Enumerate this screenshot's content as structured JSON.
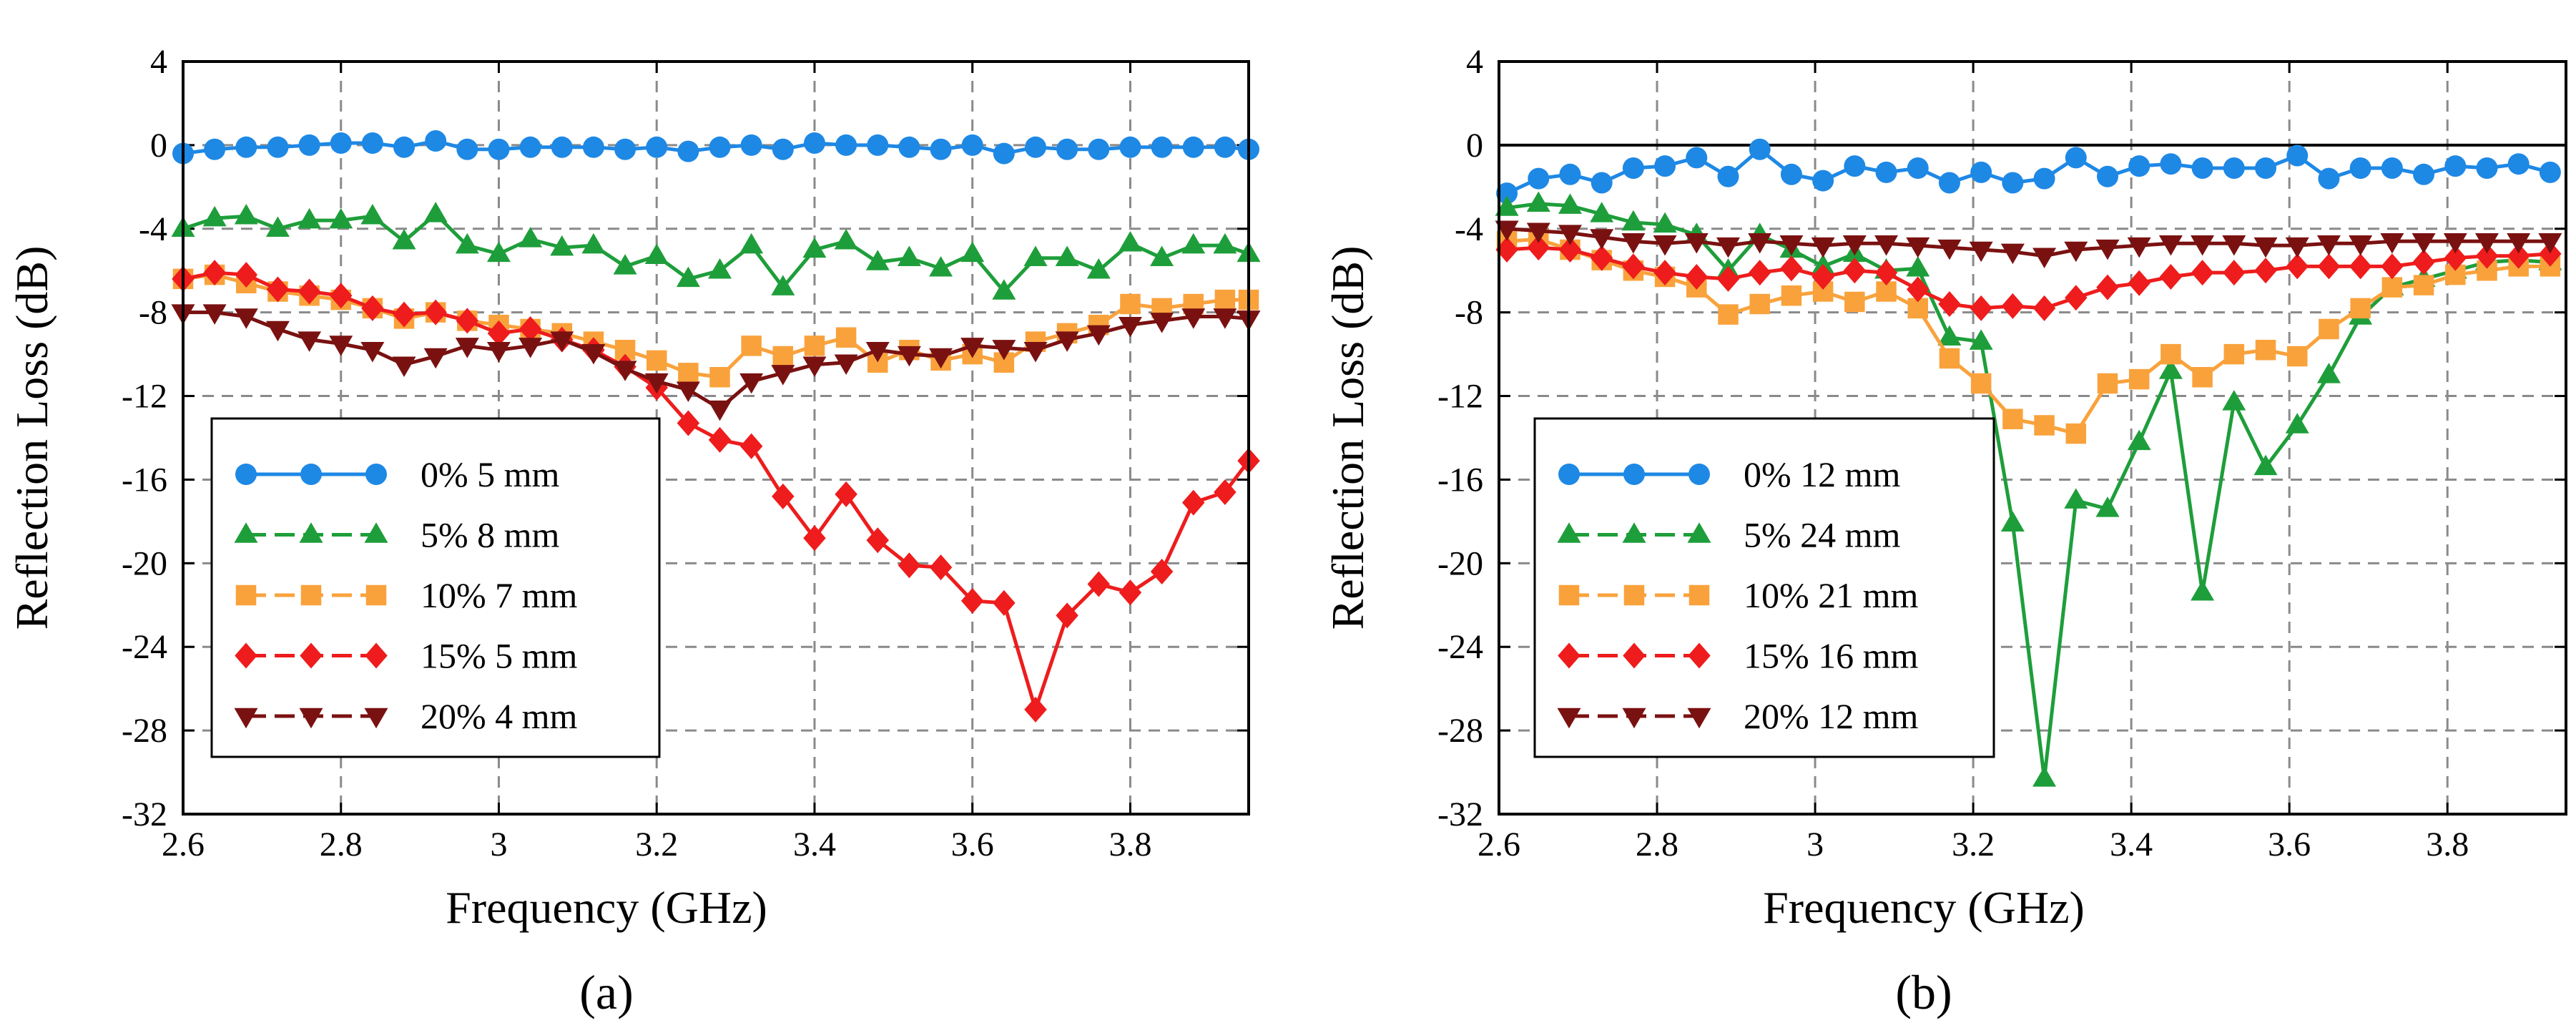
{
  "chart_data": [
    {
      "type": "line",
      "panel_label": "(a)",
      "xlabel": "Frequency (GHz)",
      "ylabel": "Reflection Loss (dB)",
      "xlim": [
        2.6,
        3.95
      ],
      "ylim": [
        -32,
        4
      ],
      "xticks": [
        2.6,
        2.8,
        3.0,
        3.2,
        3.4,
        3.6,
        3.8
      ],
      "xtick_labels": [
        "2.6",
        "2.8",
        "3",
        "3.2",
        "3.4",
        "3.6",
        "3.8"
      ],
      "yticks": [
        4,
        0,
        -4,
        -8,
        -12,
        -16,
        -20,
        -24,
        -28,
        -32
      ],
      "ytick_labels": [
        "4",
        "0",
        "-4",
        "-8",
        "-12",
        "-16",
        "-20",
        "-24",
        "-28",
        "-32"
      ],
      "grid": true,
      "legend_position": "lower-left",
      "x": [
        2.6,
        2.64,
        2.68,
        2.72,
        2.76,
        2.8,
        2.84,
        2.88,
        2.92,
        2.96,
        3.0,
        3.04,
        3.08,
        3.12,
        3.16,
        3.2,
        3.24,
        3.28,
        3.32,
        3.36,
        3.4,
        3.44,
        3.48,
        3.52,
        3.56,
        3.6,
        3.64,
        3.68,
        3.72,
        3.76,
        3.8,
        3.84,
        3.88,
        3.92,
        3.95
      ],
      "series": [
        {
          "name": "0% 5 mm",
          "color": "#1E88E5",
          "marker": "circle",
          "values": [
            -0.4,
            -0.2,
            -0.1,
            -0.1,
            0.0,
            0.1,
            0.1,
            -0.1,
            0.2,
            -0.2,
            -0.2,
            -0.1,
            -0.1,
            -0.1,
            -0.2,
            -0.1,
            -0.3,
            -0.1,
            0.0,
            -0.2,
            0.1,
            0.0,
            0.0,
            -0.1,
            -0.2,
            0.0,
            -0.4,
            -0.1,
            -0.2,
            -0.2,
            -0.1,
            -0.1,
            -0.1,
            -0.1,
            -0.2
          ]
        },
        {
          "name": "5% 8 mm",
          "color": "#1E9E3A",
          "marker": "triangle-up",
          "values": [
            -4.0,
            -3.5,
            -3.4,
            -4.0,
            -3.6,
            -3.6,
            -3.4,
            -4.6,
            -3.3,
            -4.8,
            -5.2,
            -4.5,
            -4.9,
            -4.8,
            -5.8,
            -5.3,
            -6.4,
            -6.0,
            -4.8,
            -6.8,
            -5.0,
            -4.6,
            -5.6,
            -5.4,
            -5.9,
            -5.2,
            -7.0,
            -5.4,
            -5.4,
            -6.0,
            -4.7,
            -5.4,
            -4.8,
            -4.8,
            -5.2
          ]
        },
        {
          "name": "10% 7 mm",
          "color": "#F9A23C",
          "marker": "square",
          "values": [
            -6.4,
            -6.2,
            -6.6,
            -7.0,
            -7.2,
            -7.4,
            -7.8,
            -8.3,
            -8.0,
            -8.4,
            -8.6,
            -8.8,
            -9.0,
            -9.4,
            -9.8,
            -10.3,
            -10.9,
            -11.1,
            -9.6,
            -10.1,
            -9.6,
            -9.2,
            -10.4,
            -9.8,
            -10.3,
            -10.0,
            -10.4,
            -9.4,
            -9.0,
            -8.6,
            -7.6,
            -7.8,
            -7.6,
            -7.4,
            -7.4
          ]
        },
        {
          "name": "15% 5 mm",
          "color": "#EE1C1C",
          "marker": "diamond",
          "values": [
            -6.4,
            -6.1,
            -6.2,
            -6.9,
            -7.0,
            -7.2,
            -7.8,
            -8.1,
            -8.0,
            -8.4,
            -9.0,
            -8.8,
            -9.3,
            -9.8,
            -10.6,
            -11.6,
            -13.3,
            -14.1,
            -14.4,
            -16.8,
            -18.8,
            -16.7,
            -18.9,
            -20.1,
            -20.2,
            -21.8,
            -21.9,
            -27.0,
            -22.5,
            -21.0,
            -21.4,
            -20.4,
            -17.1,
            -16.6,
            -15.1
          ]
        },
        {
          "name": "20% 4 mm",
          "color": "#7A1111",
          "marker": "triangle-down",
          "values": [
            -8.0,
            -8.0,
            -8.2,
            -8.8,
            -9.3,
            -9.5,
            -9.8,
            -10.5,
            -10.1,
            -9.6,
            -9.8,
            -9.6,
            -9.3,
            -9.9,
            -10.7,
            -11.3,
            -11.7,
            -12.6,
            -11.3,
            -10.9,
            -10.5,
            -10.4,
            -9.8,
            -10.0,
            -10.1,
            -9.6,
            -9.7,
            -9.8,
            -9.3,
            -9.0,
            -8.6,
            -8.4,
            -8.2,
            -8.2,
            -8.3
          ]
        }
      ]
    },
    {
      "type": "line",
      "panel_label": "(b)",
      "xlabel": "Frequency (GHz)",
      "ylabel": "Reflection Loss (dB)",
      "xlim": [
        2.6,
        3.95
      ],
      "ylim": [
        -32,
        4
      ],
      "xticks": [
        2.6,
        2.8,
        3.0,
        3.2,
        3.4,
        3.6,
        3.8
      ],
      "xtick_labels": [
        "2.6",
        "2.8",
        "3",
        "3.2",
        "3.4",
        "3.6",
        "3.8"
      ],
      "yticks": [
        4,
        0,
        -4,
        -8,
        -12,
        -16,
        -20,
        -24,
        -28,
        -32
      ],
      "ytick_labels": [
        "4",
        "0",
        "-4",
        "-8",
        "-12",
        "-16",
        "-20",
        "-24",
        "-28",
        "-32"
      ],
      "grid": true,
      "zero_line": true,
      "legend_position": "lower-left",
      "x": [
        2.61,
        2.65,
        2.69,
        2.73,
        2.77,
        2.81,
        2.85,
        2.89,
        2.93,
        2.97,
        3.01,
        3.05,
        3.09,
        3.13,
        3.17,
        3.21,
        3.25,
        3.29,
        3.33,
        3.37,
        3.41,
        3.45,
        3.49,
        3.53,
        3.57,
        3.61,
        3.65,
        3.69,
        3.73,
        3.77,
        3.81,
        3.85,
        3.89,
        3.93
      ],
      "series": [
        {
          "name": "0% 12 mm",
          "color": "#1E88E5",
          "marker": "circle",
          "values": [
            -2.3,
            -1.6,
            -1.4,
            -1.8,
            -1.1,
            -1.0,
            -0.6,
            -1.5,
            -0.2,
            -1.4,
            -1.7,
            -1.0,
            -1.3,
            -1.1,
            -1.8,
            -1.3,
            -1.8,
            -1.6,
            -0.6,
            -1.5,
            -1.0,
            -0.9,
            -1.1,
            -1.1,
            -1.1,
            -0.5,
            -1.6,
            -1.1,
            -1.1,
            -1.4,
            -1.0,
            -1.1,
            -0.9,
            -1.3
          ]
        },
        {
          "name": "5% 24 mm",
          "color": "#1E9E3A",
          "marker": "triangle-up",
          "values": [
            -3.0,
            -2.8,
            -2.9,
            -3.3,
            -3.7,
            -3.8,
            -4.3,
            -6.0,
            -4.3,
            -5.0,
            -5.8,
            -5.2,
            -6.0,
            -5.9,
            -9.2,
            -9.4,
            -18.1,
            -30.3,
            -17.0,
            -17.4,
            -14.2,
            -10.8,
            -21.4,
            -12.3,
            -15.4,
            -13.4,
            -11.0,
            -8.2,
            -6.8,
            -6.4,
            -6.0,
            -5.6,
            -5.5,
            -5.6
          ]
        },
        {
          "name": "10% 21 mm",
          "color": "#F9A23C",
          "marker": "square",
          "values": [
            -4.6,
            -4.5,
            -5.0,
            -5.5,
            -6.0,
            -6.3,
            -6.8,
            -8.1,
            -7.6,
            -7.2,
            -7.0,
            -7.5,
            -7.0,
            -7.8,
            -10.2,
            -11.4,
            -13.1,
            -13.4,
            -13.8,
            -11.4,
            -11.2,
            -10.0,
            -11.1,
            -10.0,
            -9.8,
            -10.1,
            -8.8,
            -7.8,
            -6.8,
            -6.7,
            -6.2,
            -6.0,
            -5.8,
            -5.8
          ]
        },
        {
          "name": "15% 16 mm",
          "color": "#EE1C1C",
          "marker": "diamond",
          "values": [
            -5.0,
            -4.9,
            -5.0,
            -5.4,
            -5.8,
            -6.1,
            -6.3,
            -6.4,
            -6.1,
            -5.9,
            -6.3,
            -6.0,
            -6.1,
            -6.9,
            -7.6,
            -7.8,
            -7.7,
            -7.8,
            -7.3,
            -6.8,
            -6.6,
            -6.3,
            -6.1,
            -6.1,
            -6.0,
            -5.8,
            -5.8,
            -5.8,
            -5.8,
            -5.6,
            -5.4,
            -5.3,
            -5.3,
            -5.2
          ]
        },
        {
          "name": "20% 12 mm",
          "color": "#7A1111",
          "marker": "triangle-down",
          "values": [
            -4.0,
            -4.1,
            -4.2,
            -4.4,
            -4.6,
            -4.7,
            -4.6,
            -4.8,
            -4.6,
            -4.7,
            -4.8,
            -4.7,
            -4.7,
            -4.8,
            -4.9,
            -5.0,
            -5.1,
            -5.3,
            -5.0,
            -4.9,
            -4.8,
            -4.7,
            -4.7,
            -4.7,
            -4.8,
            -4.8,
            -4.7,
            -4.7,
            -4.6,
            -4.6,
            -4.6,
            -4.6,
            -4.6,
            -4.6
          ]
        }
      ]
    }
  ]
}
